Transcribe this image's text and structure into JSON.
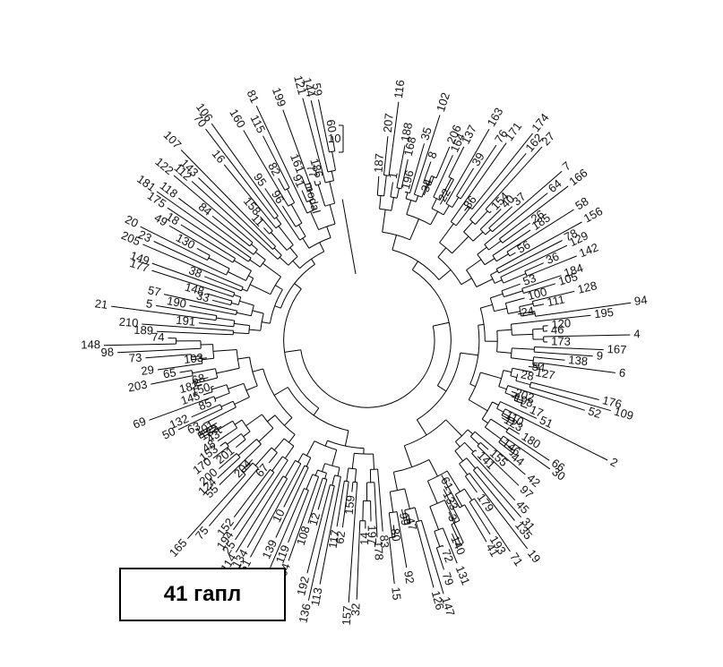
{
  "caption": "41 гапл",
  "scale_bar": {
    "label": "10"
  },
  "root_label": "modal",
  "leaves": [
    "187",
    "207",
    "116",
    "1",
    "188",
    "168",
    "196",
    "35",
    "102",
    "8",
    "34",
    "206",
    "164",
    "137",
    "22",
    "163",
    "39",
    "76",
    "171",
    "86",
    "174",
    "162",
    "27",
    "154",
    "40",
    "37",
    "7",
    "64",
    "166",
    "26",
    "185",
    "58",
    "56",
    "156",
    "78",
    "129",
    "36",
    "142",
    "53",
    "184",
    "105",
    "100",
    "128",
    "111",
    "24",
    "94",
    "195",
    "120",
    "46",
    "4",
    "173",
    "167",
    "9",
    "138",
    "6",
    "54",
    "127",
    "28",
    "176",
    "109",
    "52",
    "202",
    "198",
    "17",
    "51",
    "2",
    "110",
    "123",
    "180",
    "66",
    "30",
    "146",
    "44",
    "42",
    "155",
    "97",
    "141",
    "45",
    "31",
    "135",
    "19",
    "179",
    "71",
    "193",
    "41",
    "61",
    "133",
    "3",
    "140",
    "131",
    "72",
    "79",
    "147",
    "126",
    "47",
    "99",
    "92",
    "80",
    "15",
    "83",
    "178",
    "197",
    "14",
    "32",
    "157",
    "159",
    "62",
    "117",
    "113",
    "136",
    "192",
    "12",
    "108",
    "104",
    "119",
    "13",
    "139",
    "10",
    "151",
    "134",
    "114",
    "25",
    "194",
    "152",
    "67",
    "75",
    "165",
    "204",
    "55",
    "124",
    "200",
    "201",
    "170",
    "153",
    "48",
    "43",
    "183",
    "101",
    "63",
    "50",
    "132",
    "85",
    "69",
    "145",
    "150",
    "182",
    "68",
    "203",
    "65",
    "29",
    "103",
    "73",
    "98",
    "148",
    "74",
    "189",
    "210",
    "191",
    "21",
    "5",
    "190",
    "57",
    "33",
    "148",
    "177",
    "149",
    "38",
    "205",
    "23",
    "20",
    "130",
    "49",
    "18",
    "175",
    "181",
    "118",
    "84",
    "122",
    "112",
    "143",
    "107",
    "11",
    "158",
    "16",
    "70",
    "106",
    "95",
    "96",
    "160",
    "82",
    "115",
    "81",
    "91",
    "161",
    "199",
    "77",
    "186",
    "121",
    "144",
    "59",
    "60"
  ],
  "style": {
    "line": "#000000",
    "background": "#ffffff"
  }
}
